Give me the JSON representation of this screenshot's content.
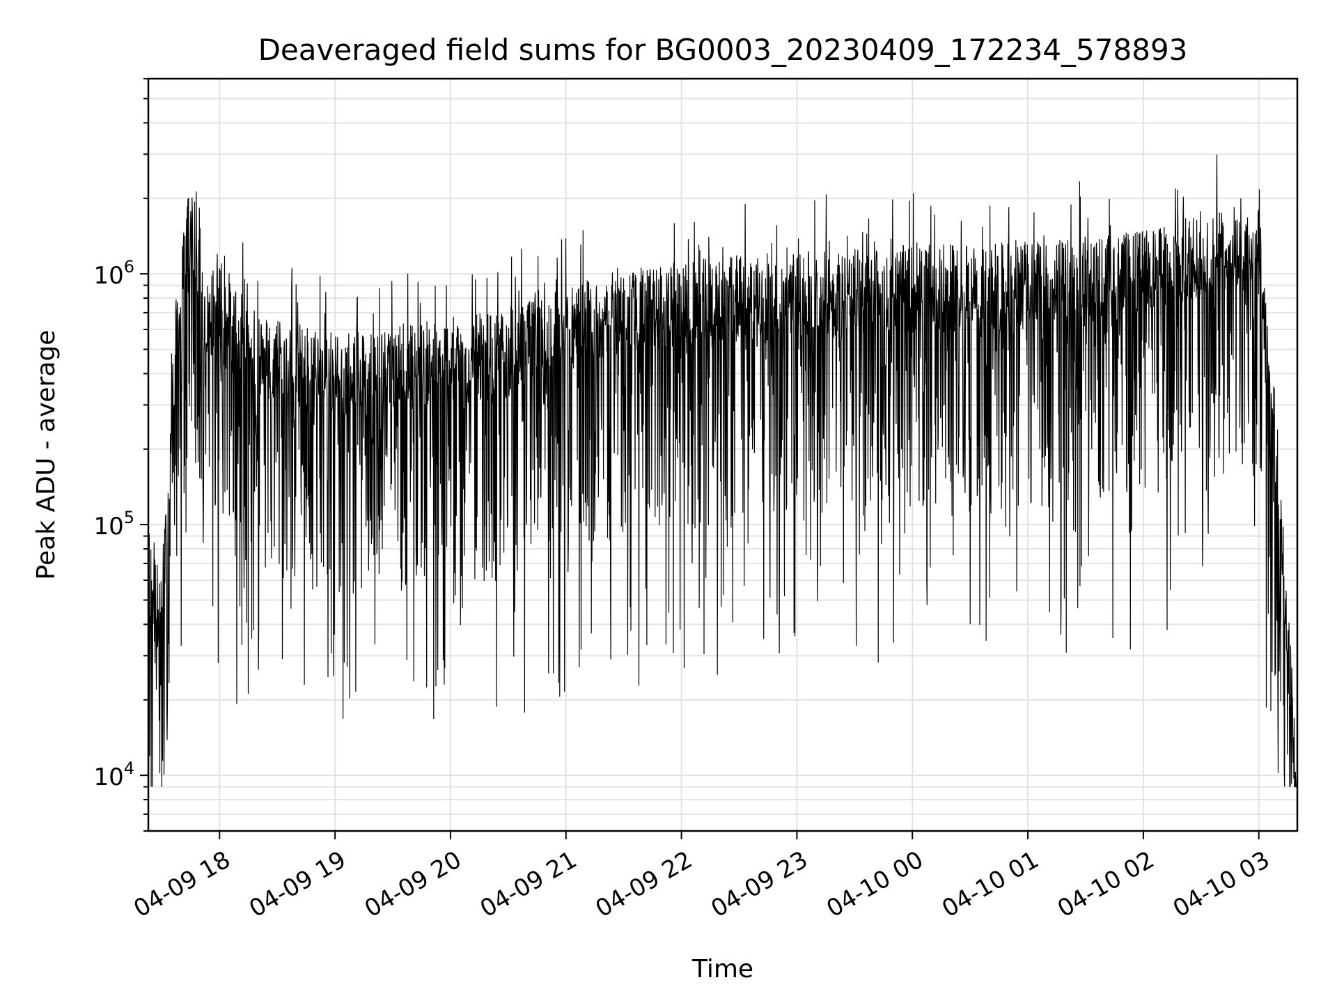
{
  "chart_data": {
    "type": "line",
    "title": "Deaveraged field sums for BG0003_20230409_172234_578893",
    "xlabel": "Time",
    "ylabel": "Peak ADU - average",
    "yscale": "log",
    "ylim": [
      6000,
      6000000
    ],
    "xlim": [
      "2023-04-09 17:23",
      "2023-04-10 03:20"
    ],
    "grid": true,
    "line_color": "#000000",
    "grid_color": "#e3e3e3",
    "x_tick_labels": [
      "04-09 18",
      "04-09 19",
      "04-09 20",
      "04-09 21",
      "04-09 22",
      "04-09 23",
      "04-10 00",
      "04-10 01",
      "04-10 02",
      "04-10 03"
    ],
    "y_tick_labels": [
      {
        "base": "10",
        "exp": "4",
        "value": 10000
      },
      {
        "base": "10",
        "exp": "5",
        "value": 100000
      },
      {
        "base": "10",
        "exp": "6",
        "value": 1000000
      }
    ],
    "series": [
      {
        "values_described": "dense time series of peak ADU values per frame",
        "x": [
          "2023-04-09 17:23",
          "2023-04-09 17:30",
          "2023-04-09 17:37",
          "2023-04-09 17:45",
          "2023-04-09 17:52",
          "2023-04-09 18:00",
          "2023-04-09 18:15",
          "2023-04-09 18:30",
          "2023-04-09 19:00",
          "2023-04-09 19:30",
          "2023-04-09 20:00",
          "2023-04-09 20:30",
          "2023-04-09 21:00",
          "2023-04-09 21:30",
          "2023-04-09 22:00",
          "2023-04-09 22:30",
          "2023-04-09 23:00",
          "2023-04-09 23:30",
          "2023-04-10 00:00",
          "2023-04-10 00:30",
          "2023-04-10 01:00",
          "2023-04-10 01:30",
          "2023-04-10 02:00",
          "2023-04-10 02:30",
          "2023-04-10 03:00",
          "2023-04-10 03:10",
          "2023-04-10 03:20"
        ],
        "y": [
          70000,
          40000,
          500000,
          1800000,
          600000,
          800000,
          500000,
          450000,
          400000,
          420000,
          450000,
          480000,
          600000,
          700000,
          750000,
          800000,
          820000,
          850000,
          870000,
          880000,
          900000,
          950000,
          1000000,
          1200000,
          1300000,
          150000,
          8000
        ]
      }
    ]
  }
}
